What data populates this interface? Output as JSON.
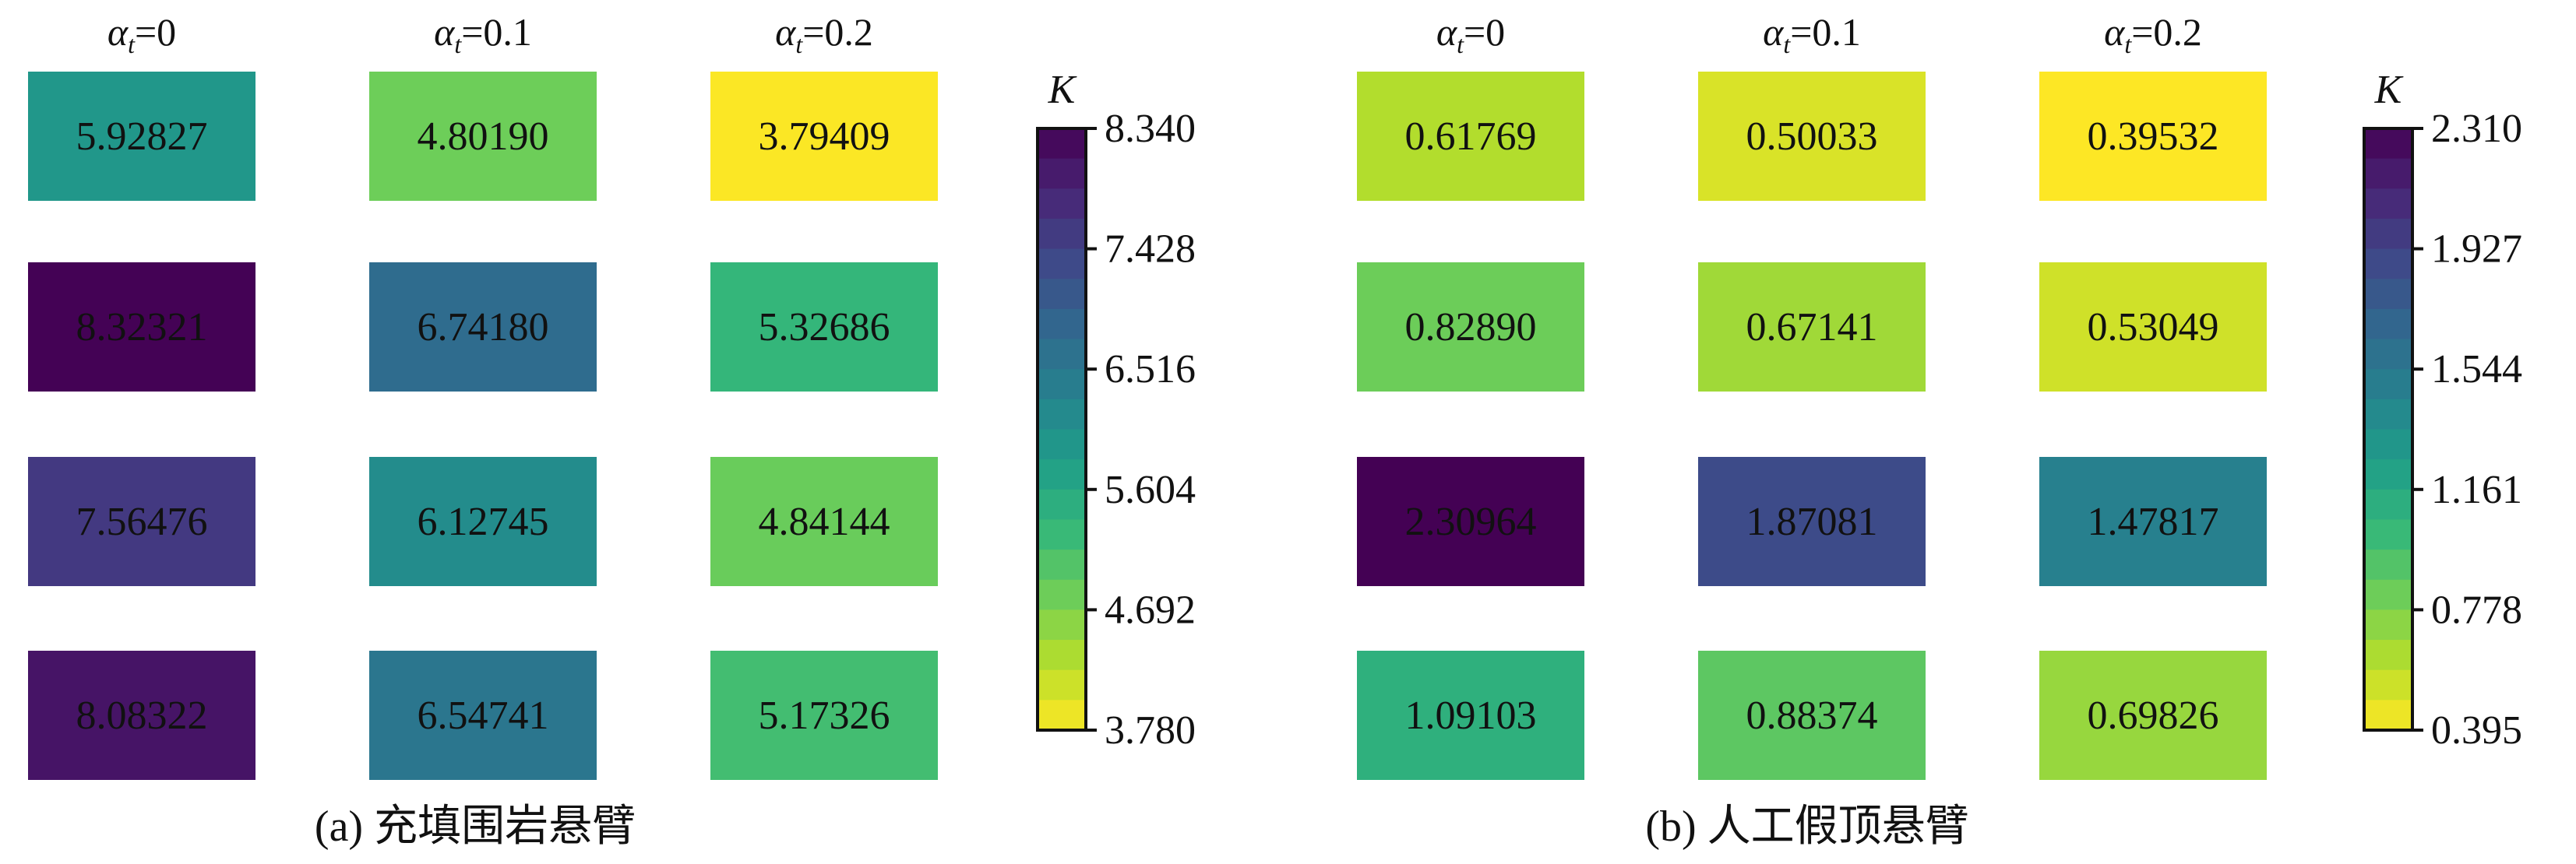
{
  "chart_data": [
    {
      "type": "heatmap",
      "caption": "(a) 充填围岩悬臂",
      "column_labels": [
        {
          "symbol": "α",
          "subscript": "t",
          "value": "=0"
        },
        {
          "symbol": "α",
          "subscript": "t",
          "value": "=0.1"
        },
        {
          "symbol": "α",
          "subscript": "t",
          "value": "=0.2"
        }
      ],
      "rows": [
        [
          "5.92827",
          "4.80190",
          "3.79409"
        ],
        [
          "8.32321",
          "6.74180",
          "5.32686"
        ],
        [
          "7.56476",
          "6.12745",
          "4.84144"
        ],
        [
          "8.08322",
          "6.54741",
          "5.17326"
        ]
      ],
      "colorbar": {
        "label": "K",
        "min": 3.78,
        "max": 8.34,
        "ticks": [
          "8.340",
          "7.428",
          "6.516",
          "5.604",
          "4.692",
          "3.780"
        ],
        "colormap": "viridis_r",
        "levels": 20
      }
    },
    {
      "type": "heatmap",
      "caption": "(b) 人工假顶悬臂",
      "column_labels": [
        {
          "symbol": "α",
          "subscript": "t",
          "value": "=0"
        },
        {
          "symbol": "α",
          "subscript": "t",
          "value": "=0.1"
        },
        {
          "symbol": "α",
          "subscript": "t",
          "value": "=0.2"
        }
      ],
      "rows": [
        [
          "0.61769",
          "0.50033",
          "0.39532"
        ],
        [
          "0.82890",
          "0.67141",
          "0.53049"
        ],
        [
          "2.30964",
          "1.87081",
          "1.47817"
        ],
        [
          "1.09103",
          "0.88374",
          "0.69826"
        ]
      ],
      "colorbar": {
        "label": "K",
        "min": 0.395,
        "max": 2.31,
        "ticks": [
          "2.310",
          "1.927",
          "1.544",
          "1.161",
          "0.778",
          "0.395"
        ],
        "colormap": "viridis_r",
        "levels": 20
      }
    }
  ]
}
